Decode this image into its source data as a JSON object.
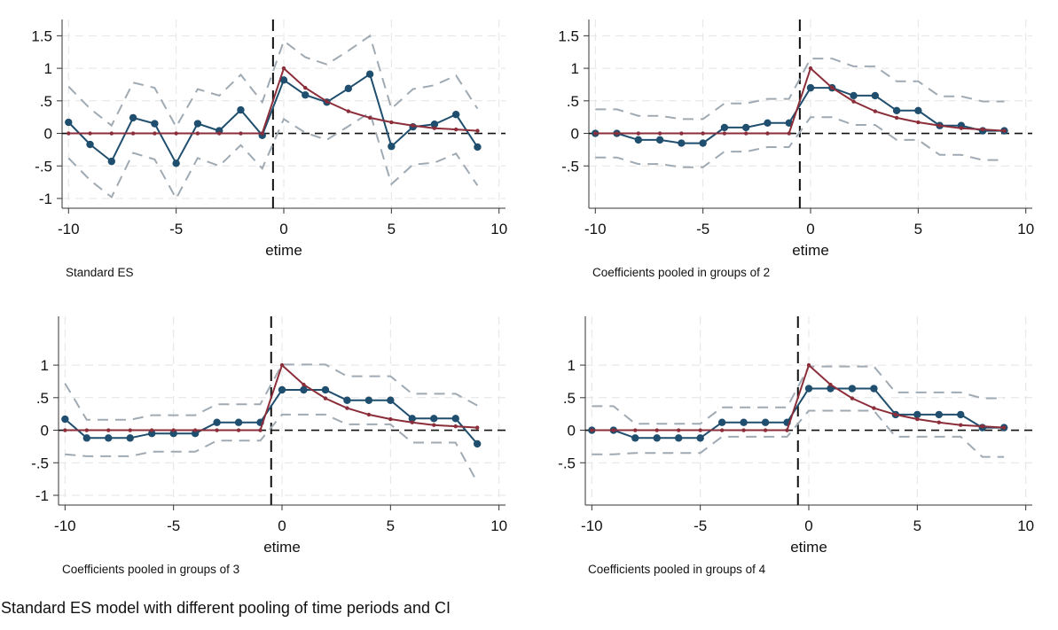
{
  "figure_caption": "Standard ES model with different pooling of time periods and CI",
  "colors": {
    "estimate": "#1f4e6e",
    "true_effect": "#8b2e3a",
    "ci": "#a0aab3",
    "reference": "#111111",
    "grid": "#e4e4e4"
  },
  "chart_data": [
    {
      "type": "line",
      "caption": "Standard ES",
      "xlabel": "etime",
      "xlim": [
        -10.3,
        10.3
      ],
      "ylim": [
        -1.15,
        1.75
      ],
      "xticks": [
        -10,
        -5,
        0,
        5,
        10
      ],
      "xtick_labels": [
        "-10",
        "-5",
        "0",
        "5",
        "10"
      ],
      "yticks": [
        -1,
        -0.5,
        0,
        0.5,
        1,
        1.5
      ],
      "ytick_labels": [
        "-1",
        "-.5",
        "0",
        ".5",
        "1",
        "1.5"
      ],
      "event_line_x": -0.5,
      "x": [
        -10,
        -9,
        -8,
        -7,
        -6,
        -5,
        -4,
        -3,
        -2,
        -1,
        0,
        1,
        2,
        3,
        4,
        5,
        6,
        7,
        8,
        9
      ],
      "series": [
        {
          "role": "estimate",
          "values": [
            0.17,
            -0.17,
            -0.43,
            0.24,
            0.15,
            -0.46,
            0.15,
            0.04,
            0.36,
            -0.03,
            0.82,
            0.59,
            0.48,
            0.69,
            0.91,
            -0.2,
            0.1,
            0.14,
            0.29,
            -0.21
          ]
        },
        {
          "role": "true_effect",
          "values": [
            0,
            0,
            0,
            0,
            0,
            0,
            0,
            0,
            0,
            0,
            1,
            0.7,
            0.49,
            0.34,
            0.24,
            0.17,
            0.12,
            0.08,
            0.06,
            0.04
          ]
        },
        {
          "role": "ci_upper",
          "values": [
            0.72,
            0.38,
            0.12,
            0.78,
            0.7,
            0.1,
            0.68,
            0.58,
            0.9,
            0.48,
            1.42,
            1.17,
            1.06,
            1.27,
            1.5,
            0.38,
            0.68,
            0.74,
            0.89,
            0.38
          ]
        },
        {
          "role": "ci_lower",
          "values": [
            -0.38,
            -0.72,
            -0.98,
            -0.3,
            -0.4,
            -1,
            -0.38,
            -0.5,
            -0.18,
            -0.54,
            0.22,
            0.01,
            -0.1,
            0.11,
            0.32,
            -0.78,
            -0.48,
            -0.45,
            -0.31,
            -0.8
          ]
        }
      ]
    },
    {
      "type": "line",
      "caption": "Coefficients pooled in groups of 2",
      "xlabel": "etime",
      "xlim": [
        -10.3,
        10.3
      ],
      "ylim": [
        -1.15,
        1.75
      ],
      "xticks": [
        -10,
        -5,
        0,
        5,
        10
      ],
      "xtick_labels": [
        "-10",
        "-5",
        "0",
        "5",
        "10"
      ],
      "yticks": [
        -0.5,
        0,
        0.5,
        1,
        1.5
      ],
      "ytick_labels": [
        "-.5",
        "0",
        ".5",
        "1",
        "1.5"
      ],
      "event_line_x": -0.5,
      "x": [
        -10,
        -9,
        -8,
        -7,
        -6,
        -5,
        -4,
        -3,
        -2,
        -1,
        0,
        1,
        2,
        3,
        4,
        5,
        6,
        7,
        8,
        9
      ],
      "series": [
        {
          "role": "estimate",
          "values": [
            0,
            0,
            -0.1,
            -0.1,
            -0.15,
            -0.15,
            0.09,
            0.09,
            0.16,
            0.16,
            0.7,
            0.7,
            0.58,
            0.58,
            0.35,
            0.35,
            0.12,
            0.12,
            0.04,
            0.04
          ]
        },
        {
          "role": "true_effect",
          "values": [
            0,
            0,
            0,
            0,
            0,
            0,
            0,
            0,
            0,
            0,
            1,
            0.7,
            0.49,
            0.34,
            0.24,
            0.17,
            0.12,
            0.08,
            0.06,
            0.04
          ]
        },
        {
          "role": "ci_upper",
          "values": [
            0.37,
            0.37,
            0.27,
            0.27,
            0.22,
            0.22,
            0.46,
            0.46,
            0.53,
            0.53,
            1.15,
            1.15,
            1.03,
            1.03,
            0.8,
            0.8,
            0.57,
            0.57,
            0.49,
            0.49
          ]
        },
        {
          "role": "ci_lower",
          "values": [
            -0.37,
            -0.37,
            -0.47,
            -0.47,
            -0.52,
            -0.52,
            -0.28,
            -0.28,
            -0.21,
            -0.21,
            0.25,
            0.25,
            0.13,
            0.13,
            -0.1,
            -0.1,
            -0.33,
            -0.33,
            -0.41,
            -0.41
          ]
        }
      ]
    },
    {
      "type": "line",
      "caption": "Coefficients pooled in groups of 3",
      "xlabel": "etime",
      "xlim": [
        -10.3,
        10.3
      ],
      "ylim": [
        -1.15,
        1.75
      ],
      "xticks": [
        -10,
        -5,
        0,
        5,
        10
      ],
      "xtick_labels": [
        "-10",
        "-5",
        "0",
        "5",
        "10"
      ],
      "yticks": [
        -1,
        -0.5,
        0,
        0.5,
        1
      ],
      "ytick_labels": [
        "-1",
        "-.5",
        "0",
        ".5",
        "1"
      ],
      "event_line_x": -0.5,
      "x": [
        -10,
        -9,
        -8,
        -7,
        -6,
        -5,
        -4,
        -3,
        -2,
        -1,
        0,
        1,
        2,
        3,
        4,
        5,
        6,
        7,
        8,
        9
      ],
      "series": [
        {
          "role": "estimate",
          "values": [
            0.17,
            -0.12,
            -0.12,
            -0.12,
            -0.05,
            -0.05,
            -0.05,
            0.12,
            0.12,
            0.12,
            0.62,
            0.62,
            0.62,
            0.46,
            0.46,
            0.46,
            0.18,
            0.18,
            0.18,
            -0.21
          ]
        },
        {
          "role": "true_effect",
          "values": [
            0,
            0,
            0,
            0,
            0,
            0,
            0,
            0,
            0,
            0,
            1,
            0.7,
            0.49,
            0.34,
            0.24,
            0.17,
            0.12,
            0.08,
            0.06,
            0.04
          ]
        },
        {
          "role": "ci_upper",
          "values": [
            0.72,
            0.16,
            0.16,
            0.16,
            0.23,
            0.23,
            0.23,
            0.4,
            0.4,
            0.4,
            1.01,
            1.01,
            1.01,
            0.83,
            0.83,
            0.83,
            0.56,
            0.56,
            0.56,
            0.38
          ]
        },
        {
          "role": "ci_lower",
          "values": [
            -0.37,
            -0.4,
            -0.4,
            -0.4,
            -0.33,
            -0.33,
            -0.33,
            -0.16,
            -0.16,
            -0.16,
            0.24,
            0.24,
            0.24,
            0.09,
            0.09,
            0.09,
            -0.19,
            -0.19,
            -0.19,
            -0.8
          ]
        }
      ]
    },
    {
      "type": "line",
      "caption": "Coefficients pooled in groups of 4",
      "xlabel": "etime",
      "xlim": [
        -10.3,
        10.3
      ],
      "ylim": [
        -1.15,
        1.75
      ],
      "xticks": [
        -10,
        -5,
        0,
        5,
        10
      ],
      "xtick_labels": [
        "-10",
        "-5",
        "0",
        "5",
        "10"
      ],
      "yticks": [
        -0.5,
        0,
        0.5,
        1
      ],
      "ytick_labels": [
        "-.5",
        "0",
        ".5",
        "1"
      ],
      "event_line_x": -0.5,
      "x": [
        -10,
        -9,
        -8,
        -7,
        -6,
        -5,
        -4,
        -3,
        -2,
        -1,
        0,
        1,
        2,
        3,
        4,
        5,
        6,
        7,
        8,
        9
      ],
      "series": [
        {
          "role": "estimate",
          "values": [
            0,
            0,
            -0.12,
            -0.12,
            -0.12,
            -0.12,
            0.12,
            0.12,
            0.12,
            0.12,
            0.64,
            0.64,
            0.64,
            0.64,
            0.24,
            0.24,
            0.24,
            0.24,
            0.04,
            0.04
          ]
        },
        {
          "role": "true_effect",
          "values": [
            0,
            0,
            0,
            0,
            0,
            0,
            0,
            0,
            0,
            0,
            1,
            0.7,
            0.49,
            0.34,
            0.24,
            0.17,
            0.12,
            0.08,
            0.06,
            0.04
          ]
        },
        {
          "role": "ci_upper",
          "values": [
            0.37,
            0.37,
            0.1,
            0.1,
            0.1,
            0.1,
            0.35,
            0.35,
            0.35,
            0.35,
            0.98,
            0.98,
            0.98,
            0.98,
            0.58,
            0.58,
            0.58,
            0.58,
            0.49,
            0.49
          ]
        },
        {
          "role": "ci_lower",
          "values": [
            -0.37,
            -0.37,
            -0.35,
            -0.35,
            -0.35,
            -0.35,
            -0.1,
            -0.1,
            -0.1,
            -0.1,
            0.3,
            0.3,
            0.3,
            0.3,
            -0.1,
            -0.1,
            -0.1,
            -0.1,
            -0.41,
            -0.41
          ]
        }
      ]
    }
  ]
}
